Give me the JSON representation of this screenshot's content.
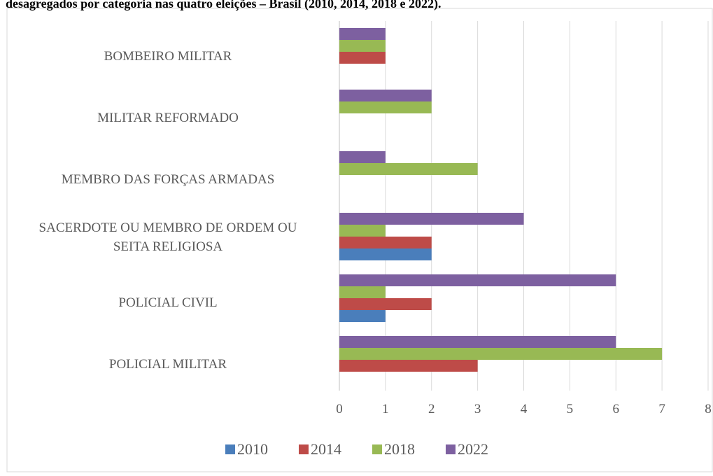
{
  "chart_data": {
    "type": "hbar",
    "title": "desagregados por categoria nas quatro eleições – Brasil (2010, 2014, 2018 e 2022).",
    "categories": [
      "BOMBEIRO MILITAR",
      "MILITAR REFORMADO",
      "MEMBRO DAS FORÇAS ARMADAS",
      "SACERDOTE OU MEMBRO DE ORDEM OU SEITA RELIGIOSA",
      "POLICIAL CIVIL",
      "POLICIAL MILITAR"
    ],
    "series": [
      {
        "name": "2010",
        "color": "#4a7ebb",
        "values": [
          0,
          0,
          0,
          2,
          1,
          0
        ]
      },
      {
        "name": "2014",
        "color": "#be4b48",
        "values": [
          1,
          0,
          0,
          2,
          2,
          3
        ]
      },
      {
        "name": "2018",
        "color": "#98b954",
        "values": [
          1,
          2,
          3,
          1,
          1,
          7
        ]
      },
      {
        "name": "2022",
        "color": "#7d60a0",
        "values": [
          1,
          2,
          1,
          4,
          6,
          6
        ]
      }
    ],
    "xlim": [
      0,
      8
    ],
    "xticks": [
      0,
      1,
      2,
      3,
      4,
      5,
      6,
      7,
      8
    ],
    "grid": true,
    "legend": "bottom"
  }
}
